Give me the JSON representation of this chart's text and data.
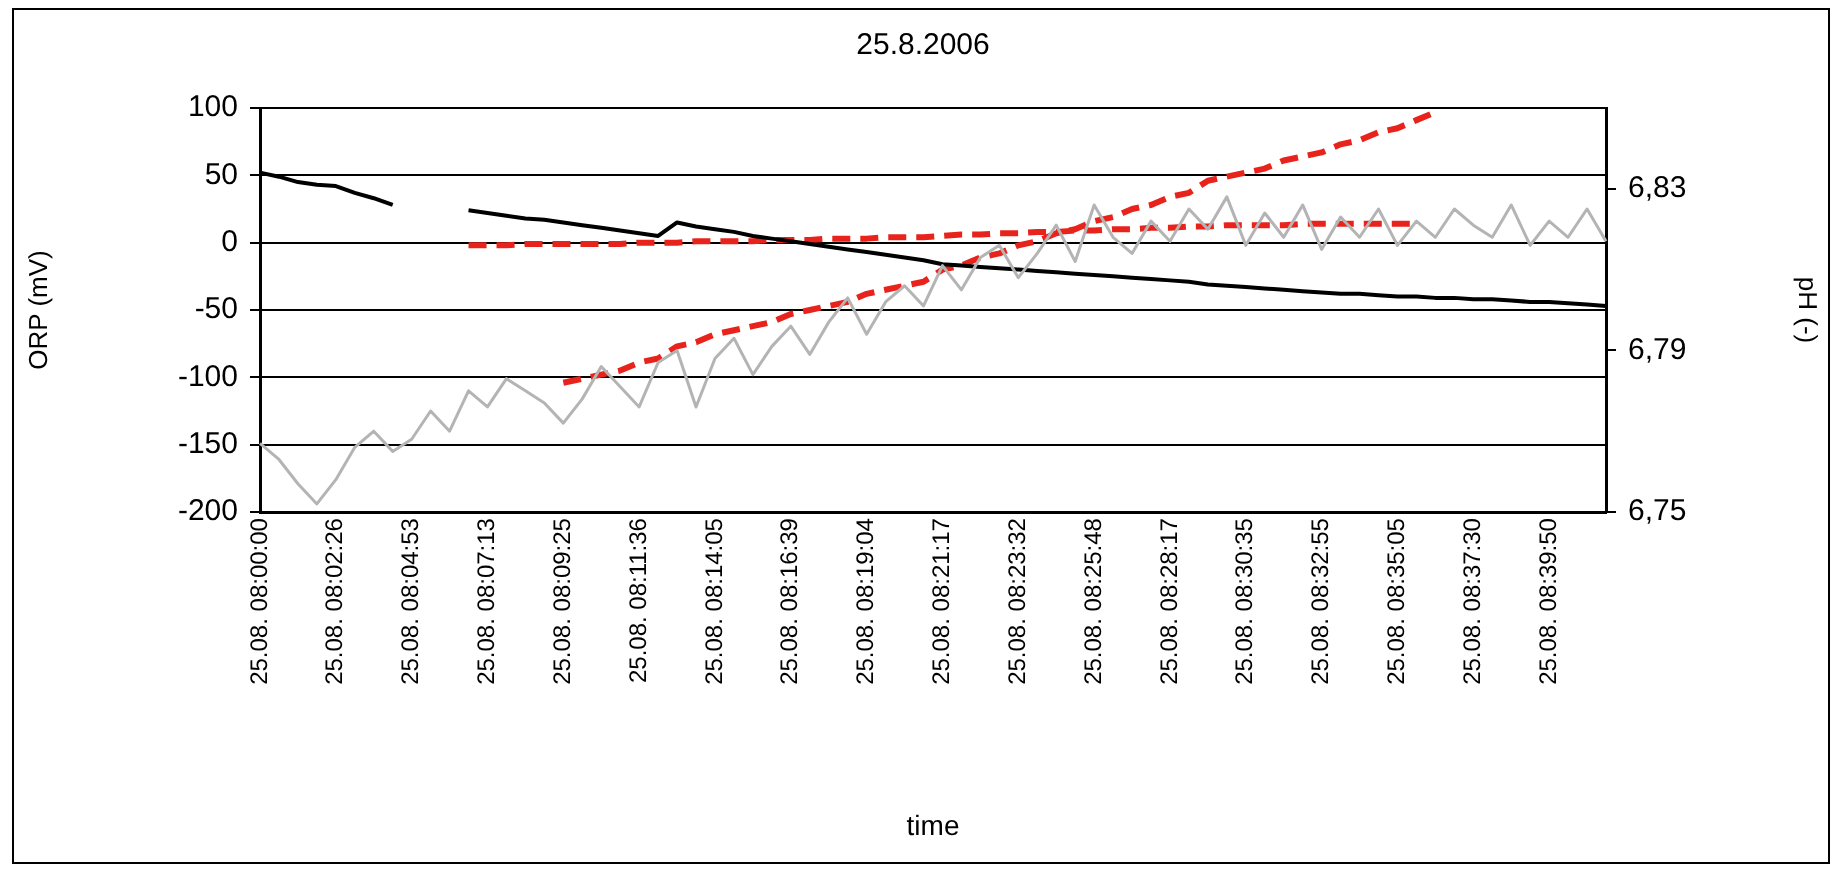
{
  "chart_data": {
    "type": "line",
    "title": "25.8.2006",
    "xlabel": "time",
    "ylabel": "ORP (mV)",
    "y2label": "pH (-)",
    "categories": [
      "25.08. 08:00:00",
      null,
      null,
      null,
      "25.08. 08:02:26",
      null,
      null,
      null,
      "25.08. 08:04:53",
      null,
      null,
      null,
      "25.08. 08:07:13",
      null,
      null,
      null,
      "25.08. 08:09:25",
      null,
      null,
      null,
      "25.08. 08:11:36",
      null,
      null,
      null,
      "25.08. 08:14:05",
      null,
      null,
      null,
      "25.08. 08:16:39",
      null,
      null,
      null,
      "25.08. 08:19:04",
      null,
      null,
      null,
      "25.08. 08:21:17",
      null,
      null,
      null,
      "25.08. 08:23:32",
      null,
      null,
      null,
      "25.08. 08:25:48",
      null,
      null,
      null,
      "25.08. 08:28:17",
      null,
      null,
      null,
      "25.08. 08:30:35",
      null,
      null,
      null,
      "25.08. 08:32:55",
      null,
      null,
      null,
      "25.08. 08:35:05",
      null,
      null,
      null,
      "25.08. 08:37:30",
      null,
      null,
      null,
      "25.08. 08:39:50",
      null,
      null,
      null
    ],
    "series": [
      {
        "axis": "y2",
        "color": "#b4b4b4",
        "line_style": "solid",
        "values": [
          6.767,
          6.763,
          6.757,
          6.752,
          6.758,
          6.766,
          6.77,
          6.765,
          6.768,
          6.775,
          6.77,
          6.78,
          6.776,
          6.783,
          6.78,
          6.777,
          6.772,
          6.778,
          6.786,
          6.781,
          6.776,
          6.787,
          6.79,
          6.776,
          6.788,
          6.793,
          6.784,
          6.791,
          6.796,
          6.789,
          6.797,
          6.803,
          6.794,
          6.802,
          6.806,
          6.801,
          6.811,
          6.805,
          6.813,
          6.816,
          6.808,
          6.814,
          6.821,
          6.812,
          6.826,
          6.818,
          6.814,
          6.822,
          6.817,
          6.825,
          6.82,
          6.828,
          6.816,
          6.824,
          6.818,
          6.826,
          6.815,
          6.823,
          6.818,
          6.825,
          6.816,
          6.822,
          6.818,
          6.825,
          6.821,
          6.818,
          6.826,
          6.816,
          6.822,
          6.818,
          6.825,
          6.817
        ]
      },
      {
        "axis": "y",
        "color": "#000000",
        "line_style": "solid",
        "values": [
          52,
          49,
          45,
          43,
          42,
          37,
          33,
          28,
          null,
          null,
          null,
          24,
          22,
          20,
          18,
          17,
          15,
          13,
          11,
          9,
          7,
          5,
          15,
          12,
          10,
          8,
          5,
          3,
          1,
          -1,
          -3,
          -5,
          -7,
          -9,
          -11,
          -13,
          -16,
          -17,
          -18,
          -19,
          -20,
          -21,
          -22,
          -23,
          -24,
          -25,
          -26,
          -27,
          -28,
          -29,
          -31,
          -32,
          -33,
          -34,
          -35,
          -36,
          -37,
          -38,
          -38,
          -39,
          -40,
          -40,
          -41,
          -41,
          -42,
          -42,
          -43,
          -44,
          -44,
          -45,
          -46,
          -47
        ]
      },
      {
        "axis": "y",
        "color": "#e8231c",
        "line_style": "dashed",
        "values": [
          null,
          null,
          null,
          null,
          null,
          null,
          null,
          null,
          null,
          null,
          null,
          -2,
          -2,
          -2,
          -1,
          -1,
          -1,
          -1,
          -1,
          -1,
          0,
          0,
          0,
          1,
          1,
          1,
          1,
          2,
          2,
          2,
          3,
          3,
          3,
          4,
          4,
          4,
          5,
          6,
          6,
          7,
          7,
          8,
          8,
          9,
          9,
          10,
          10,
          11,
          11,
          12,
          12,
          13,
          13,
          13,
          13,
          14,
          14,
          14,
          14,
          14,
          14,
          14,
          null,
          null,
          null,
          null,
          null,
          null,
          null,
          null,
          null,
          null
        ]
      },
      {
        "axis": "y2",
        "color": "#e8231c",
        "line_style": "dashed",
        "values": [
          null,
          null,
          null,
          null,
          null,
          null,
          null,
          null,
          null,
          null,
          null,
          null,
          null,
          null,
          null,
          null,
          6.782,
          6.783,
          6.784,
          6.785,
          6.787,
          6.788,
          6.791,
          6.792,
          6.794,
          6.795,
          6.796,
          6.797,
          6.799,
          6.8,
          6.801,
          6.802,
          6.804,
          6.805,
          6.806,
          6.807,
          6.81,
          6.811,
          6.813,
          6.814,
          6.816,
          6.817,
          6.819,
          6.82,
          6.822,
          6.823,
          6.825,
          6.826,
          6.828,
          6.829,
          6.832,
          6.833,
          6.834,
          6.835,
          6.837,
          6.838,
          6.839,
          6.841,
          6.842,
          6.844,
          6.845,
          6.847,
          6.849,
          null,
          null,
          null,
          null,
          null,
          null,
          null,
          null,
          null
        ]
      }
    ],
    "ylim": [
      -200,
      100
    ],
    "yticks": [
      -200,
      -150,
      -100,
      -50,
      0,
      50,
      100
    ],
    "y2lim": [
      6.75,
      6.85
    ],
    "y2ticks": [
      {
        "value": 6.75,
        "label": "6,75"
      },
      {
        "value": 6.79,
        "label": "6,79"
      },
      {
        "value": 6.83,
        "label": "6,83"
      }
    ],
    "grid": "y",
    "legend": false,
    "marker": "none"
  }
}
